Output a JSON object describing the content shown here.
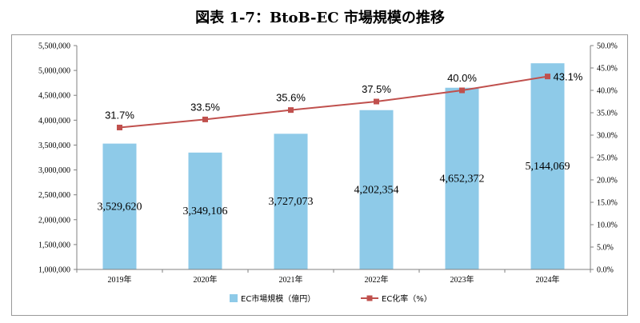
{
  "title": "図表 1-7：BtoB-EC 市場規模の推移",
  "chart_data": {
    "type": "bar",
    "categories": [
      "2019年",
      "2020年",
      "2021年",
      "2022年",
      "2023年",
      "2024年"
    ],
    "series": [
      {
        "name": "EC市場規模（億円）",
        "type": "bar",
        "axis": "left",
        "color": "#8ecae8",
        "values": [
          3529620,
          3349106,
          3727073,
          4202354,
          4652372,
          5144069
        ],
        "labels": [
          "3,529,620",
          "3,349,106",
          "3,727,073",
          "4,202,354",
          "4,652,372",
          "5,144,069"
        ]
      },
      {
        "name": "EC化率（%）",
        "type": "line",
        "axis": "right",
        "color": "#c0504d",
        "values": [
          31.7,
          33.5,
          35.6,
          37.5,
          40.0,
          43.1
        ],
        "labels": [
          "31.7%",
          "33.5%",
          "35.6%",
          "37.5%",
          "40.0%",
          "43.1%"
        ]
      }
    ],
    "y_left": {
      "ylim": [
        1000000,
        5500000
      ],
      "ticks": [
        "1,000,000",
        "1,500,000",
        "2,000,000",
        "2,500,000",
        "3,000,000",
        "3,500,000",
        "4,000,000",
        "4,500,000",
        "5,000,000",
        "5,500,000"
      ]
    },
    "y_right": {
      "ylim": [
        0,
        50
      ],
      "ticks": [
        "0.0%",
        "5.0%",
        "10.0%",
        "15.0%",
        "20.0%",
        "25.0%",
        "30.0%",
        "35.0%",
        "40.0%",
        "45.0%",
        "50.0%"
      ]
    },
    "grid": false,
    "legend_position": "bottom"
  }
}
